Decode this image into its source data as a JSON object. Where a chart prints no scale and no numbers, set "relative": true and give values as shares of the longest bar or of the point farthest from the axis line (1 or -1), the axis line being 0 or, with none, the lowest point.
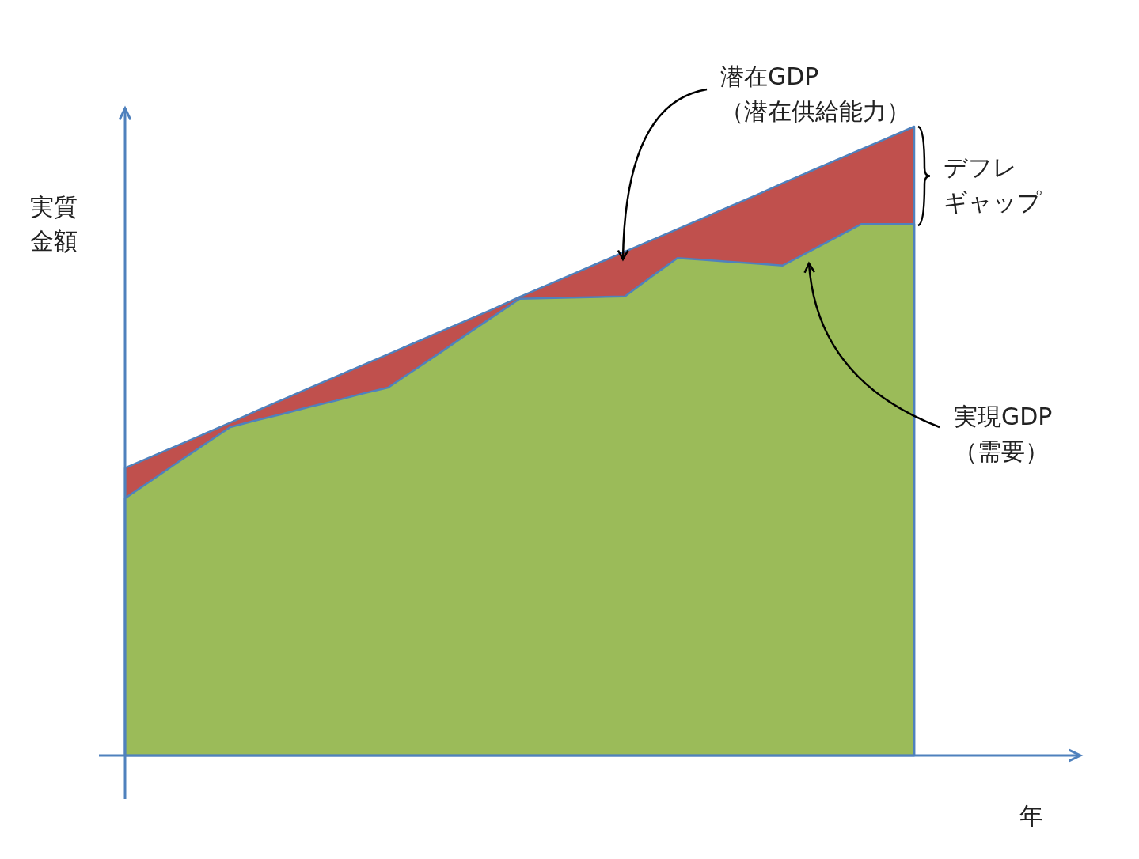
{
  "chart_data": {
    "type": "area",
    "relative": true,
    "ylabel": "実質金額",
    "xlabel": "年",
    "categories": [
      null,
      null,
      null,
      null,
      null,
      null,
      null,
      null,
      null,
      null,
      null,
      null,
      null,
      null,
      null,
      null,
      null,
      null,
      null,
      null,
      null,
      null,
      null,
      null,
      null,
      null,
      null,
      null,
      null,
      null,
      null
    ],
    "series": [
      {
        "color": "#c0504d",
        "values": [
          0.457,
          0.475,
          0.493,
          0.511,
          0.529,
          0.548,
          0.566,
          0.584,
          0.602,
          0.62,
          0.638,
          0.656,
          0.674,
          0.692,
          0.71,
          0.729,
          0.747,
          0.765,
          0.783,
          0.801,
          0.819,
          0.837,
          0.855,
          0.873,
          0.891,
          0.91,
          0.928,
          0.946,
          0.964,
          0.982,
          1
        ]
      },
      {
        "color": "#9bbb59",
        "values": [
          0.409,
          0.437,
          0.466,
          0.494,
          0.522,
          0.533,
          0.543,
          0.554,
          0.564,
          0.575,
          0.585,
          0.613,
          0.641,
          0.67,
          0.698,
          0.726,
          0.727,
          0.728,
          0.729,
          0.73,
          0.761,
          0.791,
          0.788,
          0.785,
          0.782,
          0.779,
          0.801,
          0.823,
          0.845,
          0.845,
          0.845
        ]
      }
    ],
    "annotations": [
      "潜在GDP（潜在供給能力）",
      "デフレギャップ",
      "実現GDP（需要）"
    ]
  }
}
